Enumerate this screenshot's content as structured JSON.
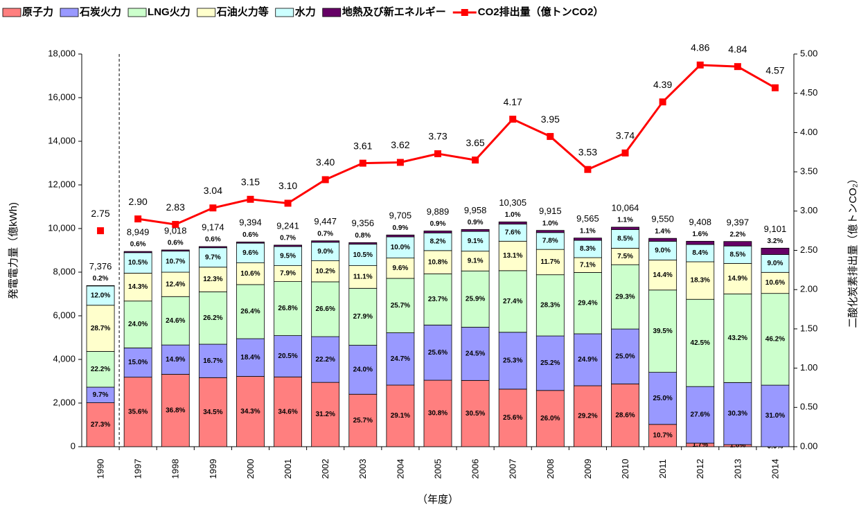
{
  "chart_data": {
    "type": "bar",
    "categories": [
      "1990",
      "1997",
      "1998",
      "1999",
      "2000",
      "2001",
      "2002",
      "2003",
      "2004",
      "2005",
      "2006",
      "2007",
      "2008",
      "2009",
      "2010",
      "2011",
      "2012",
      "2013",
      "2014"
    ],
    "totals": [
      7376,
      8949,
      9018,
      9174,
      9394,
      9241,
      9447,
      9356,
      9705,
      9889,
      9958,
      10305,
      9915,
      9565,
      10064,
      9550,
      9408,
      9397,
      9101
    ],
    "total_labels": [
      "7,376",
      "8,949",
      "9,018",
      "9,174",
      "9,394",
      "9,241",
      "9,447",
      "9,356",
      "9,705",
      "9,889",
      "9,958",
      "10,305",
      "9,915",
      "9,565",
      "10,064",
      "9,550",
      "9,408",
      "9,397",
      "9,101"
    ],
    "series": [
      {
        "name": "原子力",
        "color": "#ff7f7f",
        "values": [
          27.3,
          35.6,
          36.8,
          34.5,
          34.3,
          34.6,
          31.2,
          25.7,
          29.1,
          30.8,
          30.5,
          25.6,
          26.0,
          29.2,
          28.6,
          10.7,
          1.7,
          1.0,
          0.0
        ],
        "value_labels": [
          "27.3%",
          "35.6%",
          "36.8%",
          "34.5%",
          "34.3%",
          "34.6%",
          "31.2%",
          "25.7%",
          "29.1%",
          "30.8%",
          "30.5%",
          "25.6%",
          "26.0%",
          "29.2%",
          "28.6%",
          "10.7%",
          "1.7%",
          "1.0%",
          "0.0%"
        ]
      },
      {
        "name": "石炭火力",
        "color": "#9999ff",
        "values": [
          9.7,
          15.0,
          14.9,
          16.7,
          18.4,
          20.5,
          22.2,
          24.0,
          24.7,
          25.6,
          24.5,
          25.3,
          25.2,
          24.9,
          25.0,
          25.0,
          27.6,
          30.3,
          31.0
        ],
        "value_labels": [
          "9.7%",
          "15.0%",
          "14.9%",
          "16.7%",
          "18.4%",
          "20.5%",
          "22.2%",
          "24.0%",
          "24.7%",
          "25.6%",
          "24.5%",
          "25.3%",
          "25.2%",
          "24.9%",
          "25.0%",
          "25.0%",
          "27.6%",
          "30.3%",
          "31.0%"
        ]
      },
      {
        "name": "LNG火力",
        "color": "#ccffcc",
        "values": [
          22.2,
          24.0,
          24.6,
          26.2,
          26.4,
          26.8,
          26.6,
          27.9,
          25.7,
          23.7,
          25.9,
          27.4,
          28.3,
          29.4,
          29.3,
          39.5,
          42.5,
          43.2,
          46.2
        ],
        "value_labels": [
          "22.2%",
          "24.0%",
          "24.6%",
          "26.2%",
          "26.4%",
          "26.8%",
          "26.6%",
          "27.9%",
          "25.7%",
          "23.7%",
          "25.9%",
          "27.4%",
          "28.3%",
          "29.4%",
          "29.3%",
          "39.5%",
          "42.5%",
          "43.2%",
          "46.2%"
        ]
      },
      {
        "name": "石油火力等",
        "color": "#ffffcc",
        "values": [
          28.7,
          14.3,
          12.4,
          12.3,
          10.6,
          7.9,
          10.2,
          11.1,
          9.6,
          10.8,
          9.1,
          13.1,
          11.7,
          7.1,
          7.5,
          14.4,
          18.3,
          14.9,
          10.6
        ],
        "value_labels": [
          "28.7%",
          "14.3%",
          "12.4%",
          "12.3%",
          "10.6%",
          "7.9%",
          "10.2%",
          "11.1%",
          "9.6%",
          "10.8%",
          "9.1%",
          "13.1%",
          "11.7%",
          "7.1%",
          "7.5%",
          "14.4%",
          "18.3%",
          "14.9%",
          "10.6%"
        ]
      },
      {
        "name": "水力",
        "color": "#ccffff",
        "values": [
          12.0,
          10.5,
          10.7,
          9.7,
          9.6,
          9.5,
          9.0,
          10.5,
          10.0,
          8.2,
          9.1,
          7.6,
          7.8,
          8.3,
          8.5,
          9.0,
          8.4,
          8.5,
          9.0
        ],
        "value_labels": [
          "12.0%",
          "10.5%",
          "10.7%",
          "9.7%",
          "9.6%",
          "9.5%",
          "9.0%",
          "10.5%",
          "10.0%",
          "8.2%",
          "9.1%",
          "7.6%",
          "7.8%",
          "8.3%",
          "8.5%",
          "9.0%",
          "8.4%",
          "8.5%",
          "9.0%"
        ]
      },
      {
        "name": "地熱及び新エネルギー",
        "color": "#660066",
        "values": [
          0.2,
          0.6,
          0.6,
          0.6,
          0.6,
          0.7,
          0.7,
          0.8,
          0.9,
          0.9,
          0.9,
          1.0,
          1.0,
          1.1,
          1.1,
          1.4,
          1.6,
          2.2,
          3.2
        ],
        "value_labels": [
          "0.2%",
          "0.6%",
          "0.6%",
          "0.6%",
          "0.6%",
          "0.7%",
          "0.7%",
          "0.8%",
          "0.9%",
          "0.9%",
          "0.9%",
          "1.0%",
          "1.0%",
          "1.1%",
          "1.1%",
          "1.4%",
          "1.6%",
          "2.2%",
          "3.2%"
        ]
      },
      {
        "name": "CO2排出量（億トンCO2）",
        "color": "#ff0000",
        "axis": "y2",
        "values": [
          2.75,
          2.9,
          2.83,
          3.04,
          3.15,
          3.1,
          3.4,
          3.61,
          3.62,
          3.73,
          3.65,
          4.17,
          3.95,
          3.53,
          3.74,
          4.39,
          4.86,
          4.84,
          4.57
        ],
        "value_labels": [
          "2.75",
          "2.90",
          "2.83",
          "3.04",
          "3.15",
          "3.10",
          "3.40",
          "3.61",
          "3.62",
          "3.73",
          "3.65",
          "4.17",
          "3.95",
          "3.53",
          "3.74",
          "4.39",
          "4.86",
          "4.84",
          "4.57"
        ]
      }
    ],
    "ylabel": "発電電力量（億kWh)",
    "y2label": "二酸化炭素排出量（億トンCO₂）",
    "xlabel": "（年度）",
    "ylim": [
      0,
      18000
    ],
    "yticks": [
      0,
      {
        "value": 2000,
        "label": "2,000"
      },
      {
        "value": 4000,
        "label": "4,000"
      },
      {
        "value": 6000,
        "label": "6,000"
      },
      {
        "value": 8000,
        "label": "8,000"
      },
      {
        "value": 10000,
        "label": "10,000"
      },
      {
        "value": 12000,
        "label": "12,000"
      },
      {
        "value": 14000,
        "label": "14,000"
      },
      {
        "value": 16000,
        "label": "16,000"
      },
      {
        "value": 18000,
        "label": "18,000"
      }
    ],
    "y2lim": [
      0,
      5
    ],
    "y2ticks": [
      {
        "value": 0,
        "label": "0.00"
      },
      {
        "value": 0.5,
        "label": "0.50"
      },
      {
        "value": 1,
        "label": "1.00"
      },
      {
        "value": 1.5,
        "label": "1.50"
      },
      {
        "value": 2,
        "label": "2.00"
      },
      {
        "value": 2.5,
        "label": "2.50"
      },
      {
        "value": 3,
        "label": "3.00"
      },
      {
        "value": 3.5,
        "label": "3.50"
      },
      {
        "value": 4,
        "label": "4.00"
      },
      {
        "value": 4.5,
        "label": "4.50"
      },
      {
        "value": 5,
        "label": "5.00"
      }
    ],
    "legend": "top",
    "grid": false
  }
}
